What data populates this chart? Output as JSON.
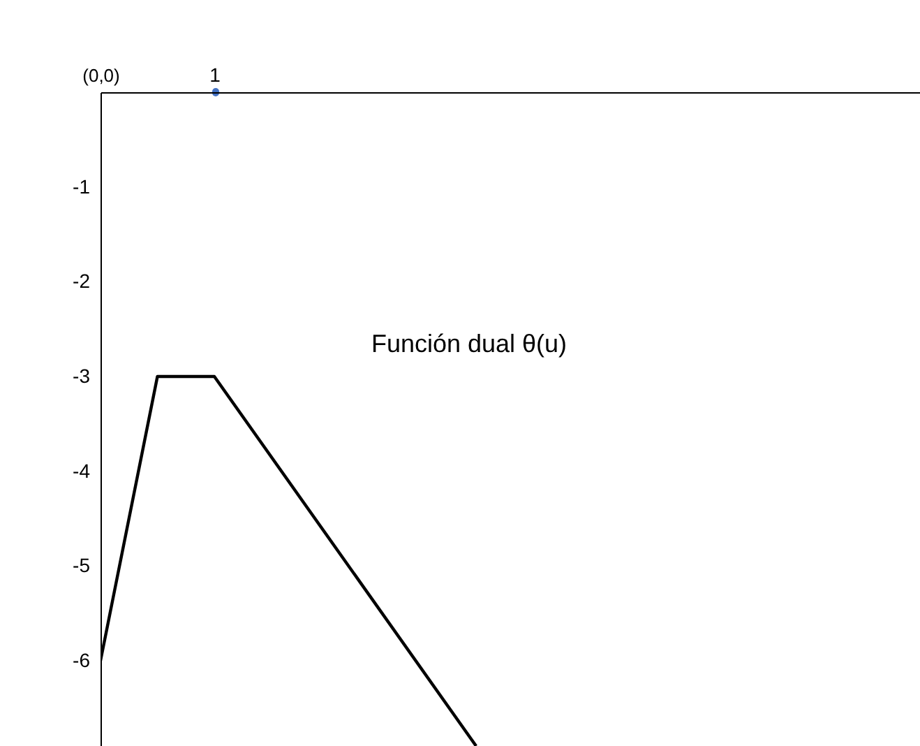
{
  "chart_data": {
    "type": "line",
    "series": [
      {
        "name": "Función dual θ(u)",
        "color": "#000000",
        "x": [
          0,
          0.5,
          1,
          3.3
        ],
        "values": [
          -6,
          -3,
          -3,
          -6.9
        ]
      }
    ],
    "xlim": [
      0,
      7.2
    ],
    "ylim": [
      -6.9,
      0
    ],
    "xticks": [
      {
        "value": 0,
        "label": "(0,0)"
      },
      1
    ],
    "yticks": [
      -6,
      -5,
      -4,
      -3,
      -2,
      -1
    ],
    "grid": false,
    "line_style": "solid"
  }
}
